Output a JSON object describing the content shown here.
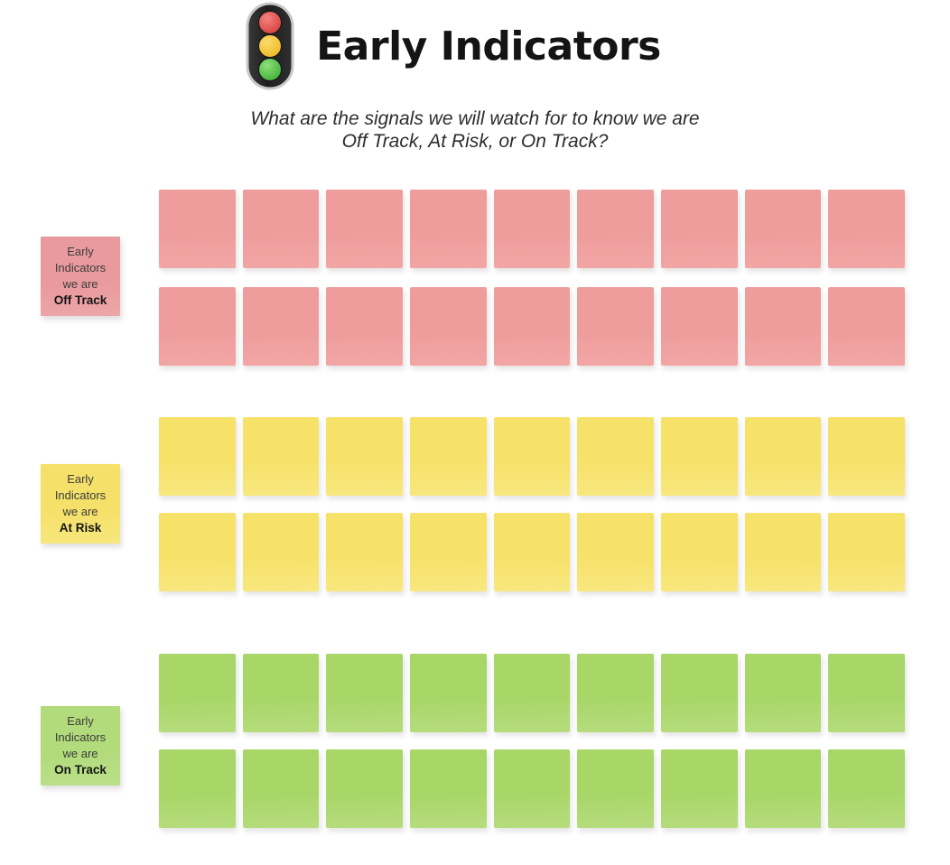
{
  "board": {
    "background": "#ffffff"
  },
  "header": {
    "icon": "traffic-light",
    "title": "Early Indicators",
    "subtitle_line1": "What are the signals we will watch for to know we are",
    "subtitle_line2": "Off Track, At Risk, or On Track?"
  },
  "traffic_light_colors": {
    "body": "#262626",
    "rim": "#c9c9c9",
    "red": "#dd4543",
    "yellow": "#f3c02c",
    "green": "#4cba3e"
  },
  "sections": [
    {
      "id": "off-track",
      "status": "Off Track",
      "label_line1": "Early",
      "label_line2": "Indicators",
      "label_line3": "we are",
      "label_emphasis": "Off Track",
      "rows": 2,
      "cols": 9,
      "note_count": 18,
      "note_color": "#EE9C9C",
      "note_color_light": "#F2A7A5",
      "label_color": "#E99A9E",
      "label_color_light": "#EDA6A8"
    },
    {
      "id": "at-risk",
      "status": "At Risk",
      "label_line1": "Early",
      "label_line2": "Indicators",
      "label_line3": "we are",
      "label_emphasis": "At Risk",
      "rows": 2,
      "cols": 9,
      "note_count": 18,
      "note_color": "#F6E169",
      "note_color_light": "#F8E880",
      "label_color": "#F5E16A",
      "label_color_light": "#F7E77E"
    },
    {
      "id": "on-track",
      "status": "On Track",
      "label_line1": "Early",
      "label_line2": "Indicators",
      "label_line3": "we are",
      "label_emphasis": "On Track",
      "rows": 2,
      "cols": 9,
      "note_count": 18,
      "note_color": "#A8D667",
      "note_color_light": "#B6DD7E",
      "label_color": "#B2DB7C",
      "label_color_light": "#BCE08A"
    }
  ]
}
